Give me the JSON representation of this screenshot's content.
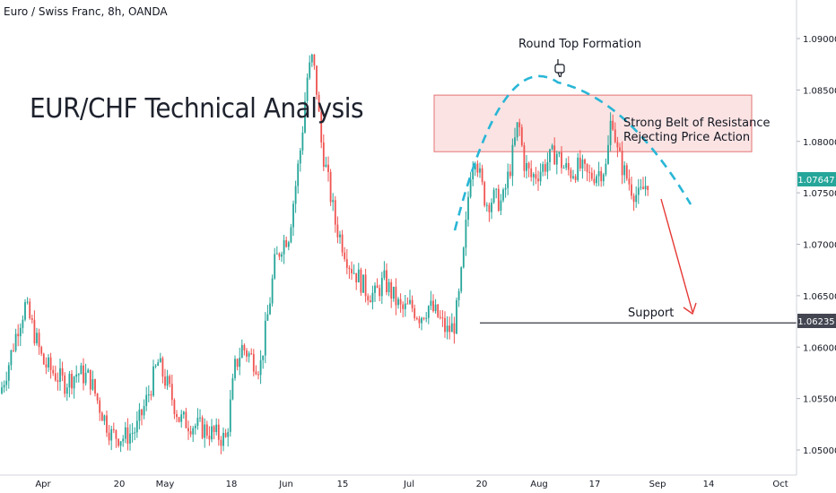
{
  "header": {
    "symbol_line": "Euro / Swiss Franc, 8h, OANDA"
  },
  "annotations": {
    "main_title": "EUR/CHF Technical Analysis",
    "round_top": "Round Top Formation",
    "resistance_line1": "Strong Belt of Resistance",
    "resistance_line2": "Rejecting Price Action",
    "support": "Support"
  },
  "colors": {
    "up": "#26a69a",
    "down": "#ef5350",
    "resistance_fill": "#fbe3e3",
    "resistance_border": "#e57373",
    "curve": "#29b6d6",
    "arrow": "#e53935",
    "current_badge": "#26a69a",
    "support_badge": "#434651"
  },
  "chart_data": {
    "type": "candlestick",
    "symbol": "Euro / Swiss Franc",
    "timeframe": "8h",
    "source": "OANDA",
    "y_axis": {
      "ticks": [
        "1.09000",
        "1.08500",
        "1.08000",
        "1.07500",
        "1.07000",
        "1.06500",
        "1.06000",
        "1.05500",
        "1.05000"
      ],
      "range": [
        1.0477,
        1.0957
      ]
    },
    "x_axis": {
      "ticks": [
        "Apr",
        "20",
        "May",
        "18",
        "Jun",
        "15",
        "Jul",
        "20",
        "Aug",
        "17",
        "Sep",
        "14",
        "Oct"
      ]
    },
    "current_price": "1.07647",
    "support_level": "1.06235",
    "resistance_zone": [
      1.079,
      1.0845
    ],
    "price_path": [
      [
        0,
        1.0555
      ],
      [
        10,
        1.0585
      ],
      [
        20,
        1.062
      ],
      [
        28,
        1.064
      ],
      [
        36,
        1.062
      ],
      [
        48,
        1.0585
      ],
      [
        60,
        1.0575
      ],
      [
        72,
        1.0565
      ],
      [
        86,
        1.0575
      ],
      [
        100,
        1.057
      ],
      [
        112,
        1.054
      ],
      [
        124,
        1.0515
      ],
      [
        138,
        1.0512
      ],
      [
        152,
        1.052
      ],
      [
        164,
        1.055
      ],
      [
        176,
        1.0585
      ],
      [
        188,
        1.056
      ],
      [
        200,
        1.053
      ],
      [
        214,
        1.0525
      ],
      [
        228,
        1.052
      ],
      [
        240,
        1.0515
      ],
      [
        252,
        1.051
      ],
      [
        262,
        1.058
      ],
      [
        270,
        1.06
      ],
      [
        280,
        1.059
      ],
      [
        290,
        1.058
      ],
      [
        300,
        1.064
      ],
      [
        306,
        1.068
      ],
      [
        314,
        1.07
      ],
      [
        322,
        1.071
      ],
      [
        330,
        1.076
      ],
      [
        336,
        1.08
      ],
      [
        342,
        1.086
      ],
      [
        348,
        1.088
      ],
      [
        352,
        1.086
      ],
      [
        358,
        1.08
      ],
      [
        366,
        1.076
      ],
      [
        374,
        1.072
      ],
      [
        382,
        1.07
      ],
      [
        390,
        1.068
      ],
      [
        398,
        1.067
      ],
      [
        408,
        1.0655
      ],
      [
        418,
        1.065
      ],
      [
        428,
        1.0665
      ],
      [
        438,
        1.065
      ],
      [
        448,
        1.0635
      ],
      [
        458,
        1.064
      ],
      [
        468,
        1.063
      ],
      [
        478,
        1.064
      ],
      [
        488,
        1.063
      ],
      [
        498,
        1.0615
      ],
      [
        506,
        1.062
      ],
      [
        512,
        1.065
      ],
      [
        518,
        1.07
      ],
      [
        524,
        1.077
      ],
      [
        530,
        1.079
      ],
      [
        536,
        1.076
      ],
      [
        542,
        1.074
      ],
      [
        550,
        1.0745
      ],
      [
        560,
        1.074
      ],
      [
        570,
        1.078
      ],
      [
        578,
        1.082
      ],
      [
        584,
        1.078
      ],
      [
        592,
        1.0765
      ],
      [
        600,
        1.077
      ],
      [
        610,
        1.078
      ],
      [
        620,
        1.079
      ],
      [
        628,
        1.0775
      ],
      [
        636,
        1.077
      ],
      [
        646,
        1.0775
      ],
      [
        656,
        1.0765
      ],
      [
        666,
        1.077
      ],
      [
        676,
        1.0775
      ],
      [
        682,
        1.083
      ],
      [
        688,
        1.079
      ],
      [
        696,
        1.077
      ],
      [
        704,
        1.0755
      ],
      [
        712,
        1.0745
      ],
      [
        718,
        1.0755
      ],
      [
        724,
        1.0765
      ]
    ]
  }
}
